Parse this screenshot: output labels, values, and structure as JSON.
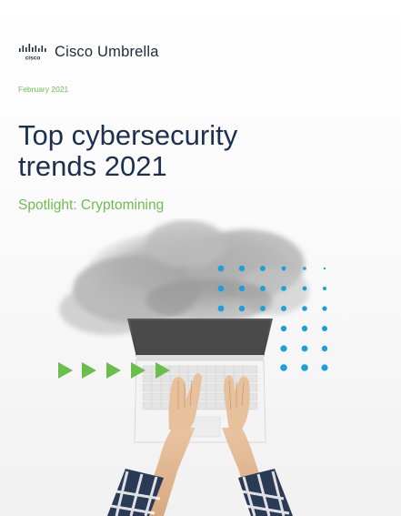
{
  "brand": {
    "logo_text": "cisco",
    "product_name": "Cisco Umbrella",
    "icon": "cisco-bridge-logo"
  },
  "cover": {
    "date": "February 2021",
    "title_lines": [
      "Top cybersecurity",
      "trends 2021"
    ],
    "subtitle": "Spotlight: Cryptomining"
  },
  "colors": {
    "title": "#1e3050",
    "accent_green": "#6abf4b",
    "accent_blue": "#1ba0d7",
    "background": "#ffffff"
  }
}
